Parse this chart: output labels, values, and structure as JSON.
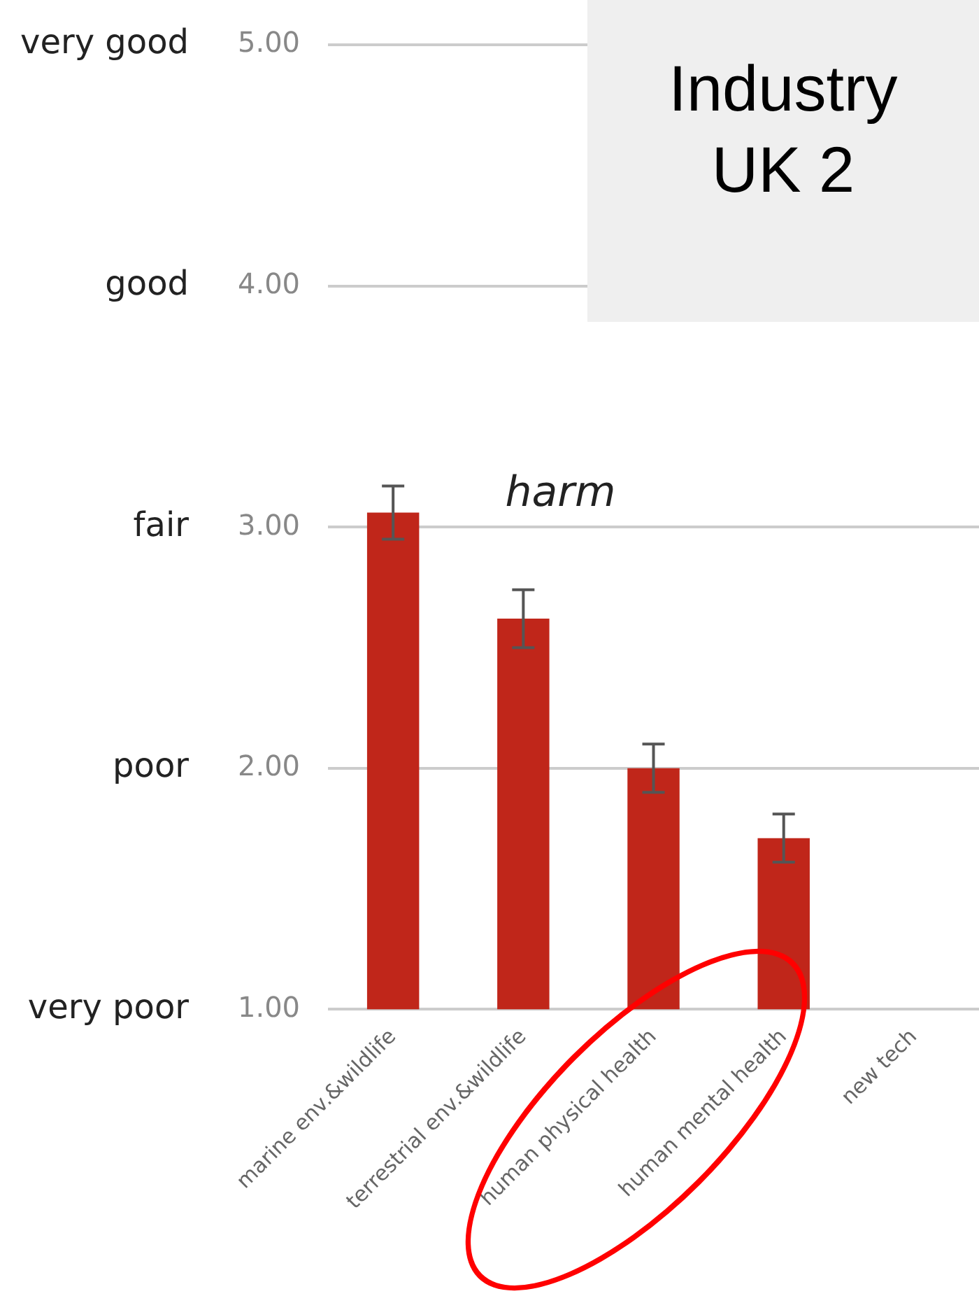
{
  "chart_data": {
    "type": "bar",
    "title": "Industry UK 2",
    "categories": [
      "marine env.&wildlife",
      "terrestrial env.&wildlife",
      "human physical health",
      "human mental health",
      "new tech"
    ],
    "values": [
      3.06,
      2.62,
      2.0,
      1.71,
      null
    ],
    "errors": [
      0.11,
      0.12,
      0.1,
      0.1,
      null
    ],
    "color": "#c0261a",
    "ylim": [
      1,
      5
    ],
    "yticks": [
      {
        "value": 1,
        "label": "1.00"
      },
      {
        "value": 2,
        "label": "2.00"
      },
      {
        "value": 3,
        "label": "3.00"
      },
      {
        "value": 4,
        "label": "4.00"
      },
      {
        "value": 5,
        "label": "5.00"
      }
    ],
    "annotations": [
      "harm",
      "very poor",
      "poor",
      "fair",
      "good",
      "very good"
    ],
    "grid": "y",
    "legend": false
  }
}
